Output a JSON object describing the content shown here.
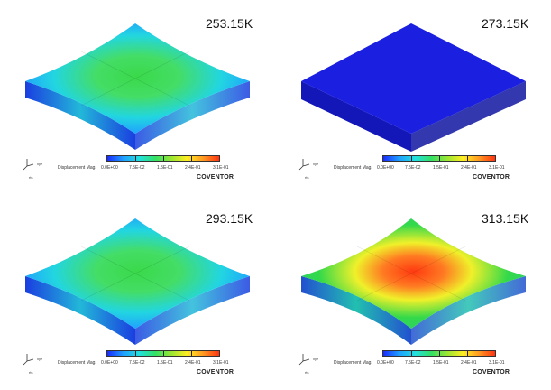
{
  "panels": [
    {
      "temperature": "253.15K",
      "state": "bowl-low"
    },
    {
      "temperature": "273.15K",
      "state": "flat"
    },
    {
      "temperature": "293.15K",
      "state": "bowl-low"
    },
    {
      "temperature": "313.15K",
      "state": "bowl-high"
    }
  ],
  "legend": {
    "label": "Displacement Mag.",
    "ticks": [
      "0.0E+00",
      "7.5E-02",
      "1.5E-01",
      "2.4E-01",
      "3.1E-01"
    ]
  },
  "brand": "COVENTOR",
  "triad_label": "xyz",
  "view_label": "rts",
  "colors": {
    "deep_blue": "#1a1fe0",
    "cyan": "#22d6e0",
    "green": "#33d94a",
    "yellow": "#f0f02a",
    "orange": "#ff7a22",
    "red": "#ff3a11"
  }
}
